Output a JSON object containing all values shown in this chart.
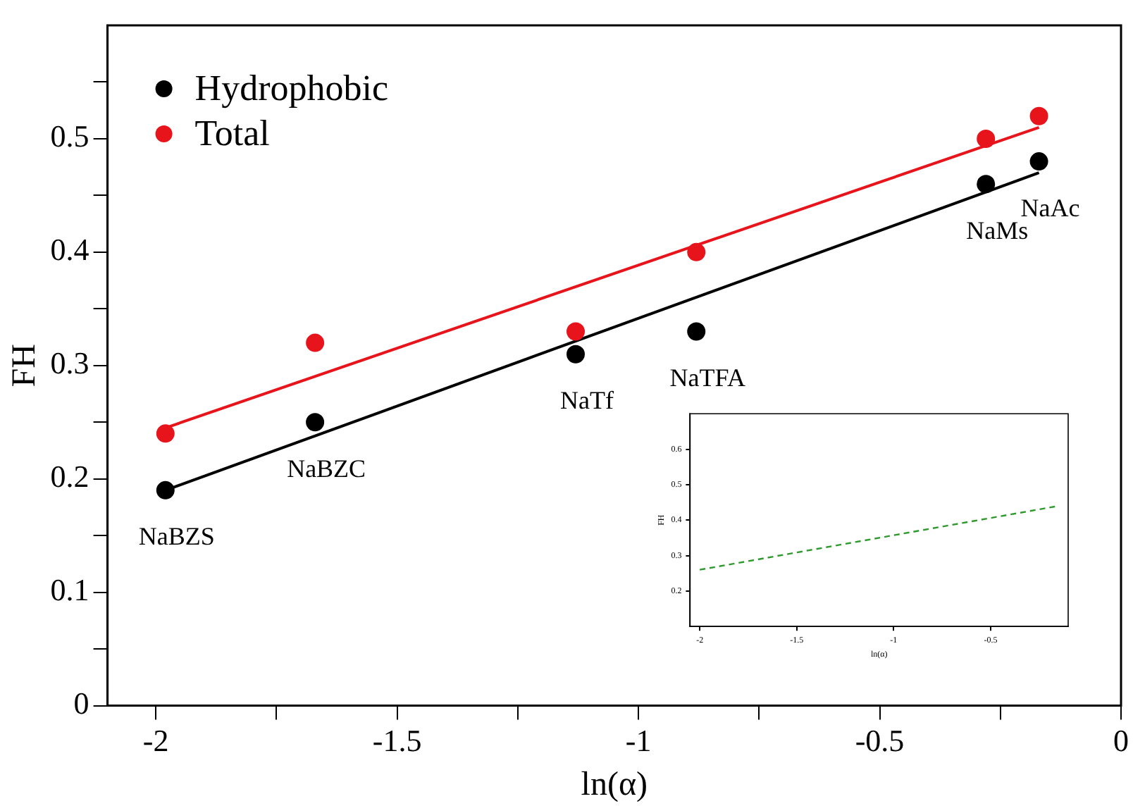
{
  "chart_data": [
    {
      "type": "scatter",
      "xlabel": "ln(α)",
      "ylabel": "FH",
      "xlim": [
        -2.1,
        0
      ],
      "ylim": [
        0,
        0.6
      ],
      "xticks": [
        -2,
        {
          "value": -1.75,
          "label": null
        },
        -1.5,
        {
          "value": -1.25,
          "label": null
        },
        -1,
        {
          "value": -0.75,
          "label": null
        },
        -0.5,
        {
          "value": -0.25,
          "label": null
        },
        0
      ],
      "yticks": [
        0,
        {
          "value": 0.05,
          "label": null
        },
        0.1,
        {
          "value": 0.15,
          "label": null
        },
        0.2,
        {
          "value": 0.25,
          "label": null
        },
        0.3,
        {
          "value": 0.35,
          "label": null
        },
        0.4,
        {
          "value": 0.45,
          "label": null
        },
        0.5,
        {
          "value": 0.55,
          "label": null
        }
      ],
      "legend": "top left",
      "marker": "circle",
      "series": [
        {
          "name": "Hydrophobic",
          "color": "#000000",
          "x": [
            -1.98,
            -1.67,
            -1.13,
            -0.88,
            -0.28,
            -0.17
          ],
          "values": [
            0.19,
            0.25,
            0.31,
            0.33,
            0.46,
            0.48
          ]
        },
        {
          "name": "Total",
          "color": "#e8141c",
          "x": [
            -1.98,
            -1.67,
            -1.13,
            -0.88,
            -0.28,
            -0.17
          ],
          "values": [
            0.24,
            0.32,
            0.33,
            0.4,
            0.5,
            0.52
          ]
        },
        {
          "type": "line",
          "marker": "none",
          "color": "#000000",
          "x": [
            -1.98,
            -0.17
          ],
          "values": [
            0.19,
            0.47
          ]
        },
        {
          "type": "line",
          "marker": "none",
          "color": "#e8141c",
          "x": [
            -1.98,
            -0.17
          ],
          "values": [
            0.245,
            0.51
          ]
        }
      ],
      "annotations": [
        {
          "text": "NaBZS",
          "x": -1.98,
          "y": 0.19
        },
        {
          "text": "NaBZC",
          "x": -1.67,
          "y": 0.25
        },
        {
          "text": "NaTf",
          "x": -1.13,
          "y": 0.31
        },
        {
          "text": "NaTFA",
          "x": -0.88,
          "y": 0.33
        },
        {
          "text": "NaMs",
          "x": -0.28,
          "y": 0.46
        },
        {
          "text": "NaAc",
          "x": -0.17,
          "y": 0.48
        }
      ]
    },
    {
      "type": "line",
      "xlabel": "ln(α)",
      "ylabel": "FH",
      "xlim": [
        -2.05,
        -0.1
      ],
      "ylim": [
        0.1,
        0.7
      ],
      "xticks": [
        -2,
        -1.5,
        -1,
        -0.5
      ],
      "yticks": [
        0.2,
        0.3,
        0.4,
        0.5,
        0.6
      ],
      "line_style": "dashed",
      "series": [
        {
          "color": "#2e9a2e",
          "x": [
            -2,
            -0.15
          ],
          "values": [
            0.26,
            0.44
          ]
        }
      ]
    }
  ]
}
